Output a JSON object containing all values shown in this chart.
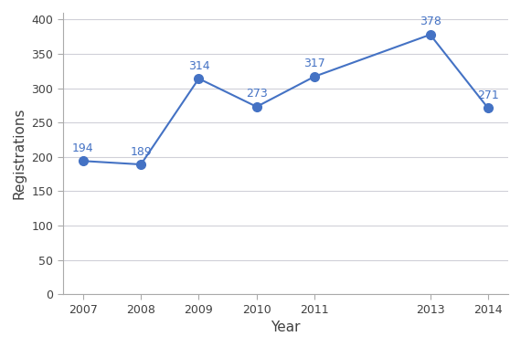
{
  "years": [
    2007,
    2008,
    2009,
    2010,
    2011,
    2013,
    2014
  ],
  "values": [
    194,
    189,
    314,
    273,
    317,
    378,
    271
  ],
  "line_color": "#4472C4",
  "marker_color": "#4472C4",
  "xlabel": "Year",
  "ylabel": "Registrations",
  "ylim": [
    0,
    410
  ],
  "yticks": [
    0,
    50,
    100,
    150,
    200,
    250,
    300,
    350,
    400
  ],
  "background_color": "#ffffff",
  "plot_bg_color": "#ffffff",
  "grid_color": "#d0d0d8",
  "label_fontsize": 9,
  "axis_label_fontsize": 11,
  "annotation_fontsize": 9,
  "tick_label_color": "#404040",
  "annotation_color": "#4472C4"
}
